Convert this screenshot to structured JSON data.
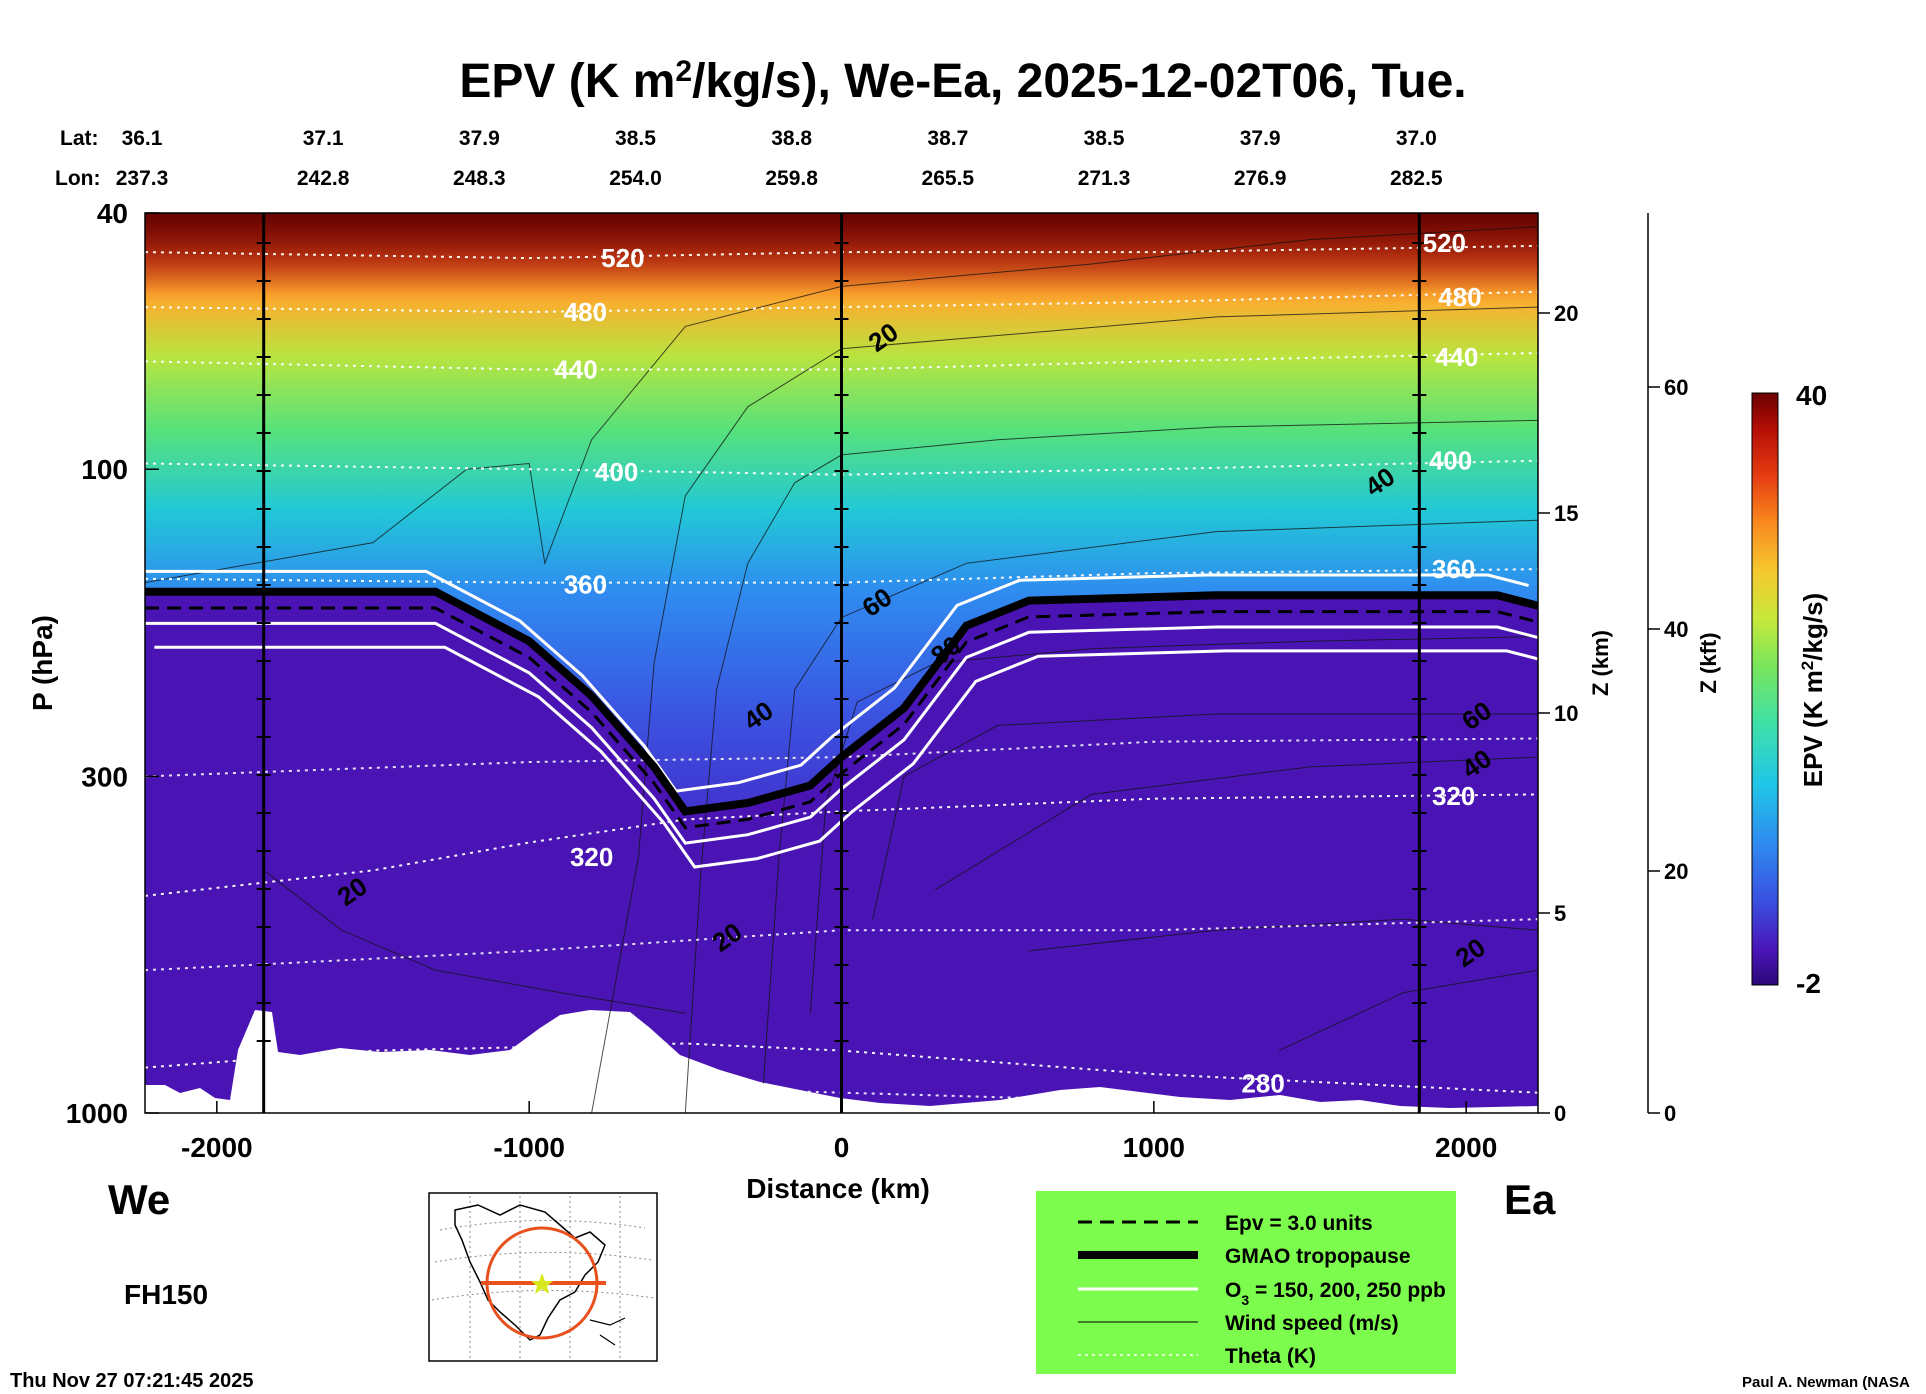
{
  "chart_data": {
    "type": "heatmap",
    "title": "EPV (K m²/kg/s), We-Ea, 2025-12-02T06, Tue.",
    "title_parts": {
      "pre": "EPV (K m",
      "sup": "2",
      "post": "/kg/s), We-Ea, 2025-12-02T06, Tue."
    },
    "xlabel": "Distance (km)",
    "ylabel": "P (hPa)",
    "z_km_label": "Z (km)",
    "z_kft_label": "Z (kft)",
    "colorbar_label": "EPV (K m²/kg/s)",
    "colorbar_label_parts": {
      "pre": "EPV (K m",
      "sup": "2",
      "post": "/kg/s)"
    },
    "colorbar_range": [
      -2,
      40
    ],
    "colorbar_ticks": [
      "40",
      "-2"
    ],
    "xlim": [
      -2230,
      2230
    ],
    "ylim_hpa": [
      1000,
      40
    ],
    "y_scale": "log",
    "x_ticks": [
      {
        "value": -2000,
        "label": "-2000"
      },
      {
        "value": -1000,
        "label": "-1000"
      },
      {
        "value": 0,
        "label": "0"
      },
      {
        "value": 1000,
        "label": "1000"
      },
      {
        "value": 2000,
        "label": "2000"
      }
    ],
    "y_ticks": [
      {
        "value": 40,
        "label": "40"
      },
      {
        "value": 100,
        "label": "100"
      },
      {
        "value": 300,
        "label": "300"
      },
      {
        "value": 1000,
        "label": "1000"
      }
    ],
    "z_km_ticks": [
      {
        "value": 0,
        "label": "0"
      },
      {
        "value": 5,
        "label": "5"
      },
      {
        "value": 10,
        "label": "10"
      },
      {
        "value": 15,
        "label": "15"
      },
      {
        "value": 20,
        "label": "20"
      }
    ],
    "z_kft_ticks": [
      {
        "value": 0,
        "label": "0"
      },
      {
        "value": 20,
        "label": "20"
      },
      {
        "value": 40,
        "label": "40"
      },
      {
        "value": 60,
        "label": "60"
      }
    ],
    "lat_label": "Lat:",
    "lon_label": "Lon:",
    "stations": [
      {
        "x": -2230,
        "lat": "36.1",
        "lon": "237.3"
      },
      {
        "x": -1730,
        "lat": "37.1",
        "lon": "242.8"
      },
      {
        "x": -1230,
        "lat": "37.9",
        "lon": "248.3"
      },
      {
        "x": -730,
        "lat": "38.5",
        "lon": "254.0"
      },
      {
        "x": -230,
        "lat": "38.8",
        "lon": "259.8"
      },
      {
        "x": 270,
        "lat": "38.7",
        "lon": "265.5"
      },
      {
        "x": 770,
        "lat": "38.5",
        "lon": "271.3"
      },
      {
        "x": 1270,
        "lat": "37.9",
        "lon": "276.9"
      },
      {
        "x": 1770,
        "lat": "37.0",
        "lon": "282.5"
      }
    ],
    "vertical_lines_km": [
      -1850,
      0,
      1850
    ],
    "theta_contours": [
      {
        "label": "520",
        "points": [
          [
            -2230,
            46
          ],
          [
            -1000,
            47
          ],
          [
            0,
            46
          ],
          [
            1000,
            46
          ],
          [
            2230,
            45
          ]
        ]
      },
      {
        "label": "480",
        "points": [
          [
            -2230,
            56
          ],
          [
            -1000,
            57
          ],
          [
            0,
            56
          ],
          [
            1000,
            55
          ],
          [
            2230,
            53
          ]
        ]
      },
      {
        "label": "440",
        "points": [
          [
            -2230,
            68
          ],
          [
            -1000,
            70
          ],
          [
            0,
            70
          ],
          [
            1000,
            68
          ],
          [
            2230,
            66
          ]
        ]
      },
      {
        "label": "400",
        "points": [
          [
            -2230,
            98
          ],
          [
            -1000,
            100
          ],
          [
            0,
            102
          ],
          [
            1000,
            100
          ],
          [
            2230,
            97
          ]
        ]
      },
      {
        "label": "360",
        "points": [
          [
            -2230,
            148
          ],
          [
            -1000,
            150
          ],
          [
            0,
            150
          ],
          [
            1000,
            145
          ],
          [
            2230,
            143
          ]
        ]
      },
      {
        "label": "320",
        "points": [
          [
            -2230,
            460
          ],
          [
            -1500,
            420
          ],
          [
            -1000,
            380
          ],
          [
            -500,
            350
          ],
          [
            0,
            340
          ],
          [
            1000,
            325
          ],
          [
            2230,
            320
          ]
        ]
      },
      {
        "label": "280",
        "points": [
          [
            -2230,
            850
          ],
          [
            -1500,
            800
          ],
          [
            -500,
            780
          ],
          [
            0,
            800
          ],
          [
            1000,
            870
          ],
          [
            2230,
            930
          ]
        ]
      }
    ],
    "wind_labels": [
      {
        "label": "20",
        "x": 150,
        "p": 62
      },
      {
        "label": "40",
        "x": 1740,
        "p": 104
      },
      {
        "label": "60",
        "x": 130,
        "p": 160
      },
      {
        "label": "80",
        "x": 350,
        "p": 190
      },
      {
        "label": "40",
        "x": -250,
        "p": 240
      },
      {
        "label": "60",
        "x": 2050,
        "p": 240
      },
      {
        "label": "40",
        "x": 2050,
        "p": 285
      },
      {
        "label": "20",
        "x": -1550,
        "p": 450
      },
      {
        "label": "20",
        "x": -350,
        "p": 530
      },
      {
        "label": "20",
        "x": 2030,
        "p": 560
      }
    ],
    "tropopause_hpa": [
      [
        -2230,
        155
      ],
      [
        -1300,
        155
      ],
      [
        -1000,
        185
      ],
      [
        -800,
        225
      ],
      [
        -600,
        290
      ],
      [
        -500,
        340
      ],
      [
        -300,
        330
      ],
      [
        -100,
        310
      ],
      [
        0,
        280
      ],
      [
        200,
        235
      ],
      [
        400,
        175
      ],
      [
        600,
        160
      ],
      [
        1200,
        157
      ],
      [
        2100,
        157
      ],
      [
        2230,
        163
      ]
    ],
    "legend": [
      {
        "style": "dashed",
        "label": "Epv = 3.0 units"
      },
      {
        "style": "thick-black",
        "label": "GMAO tropopause"
      },
      {
        "style": "white",
        "label": "O",
        "sub": "3",
        "post": " = 150, 200, 250 ppb"
      },
      {
        "style": "thin-black",
        "label": "Wind speed (m/s)"
      },
      {
        "style": "dotted-white",
        "label": "Theta (K)"
      }
    ],
    "legend_placement": "bottom-center",
    "colors": {
      "legend_bg": "#7CFC4C",
      "terrain": "#ffffff",
      "epv_low": "#3c0a96",
      "epv_high": "#7a0000"
    }
  },
  "labels": {
    "left_end": "We",
    "right_end": "Ea",
    "forecast_hour": "FH150",
    "timestamp": "Thu Nov 27 07:21:45 2025",
    "credit": "Paul A. Newman (NASA"
  },
  "inset_map": {
    "icon": "globe-map-icon"
  }
}
